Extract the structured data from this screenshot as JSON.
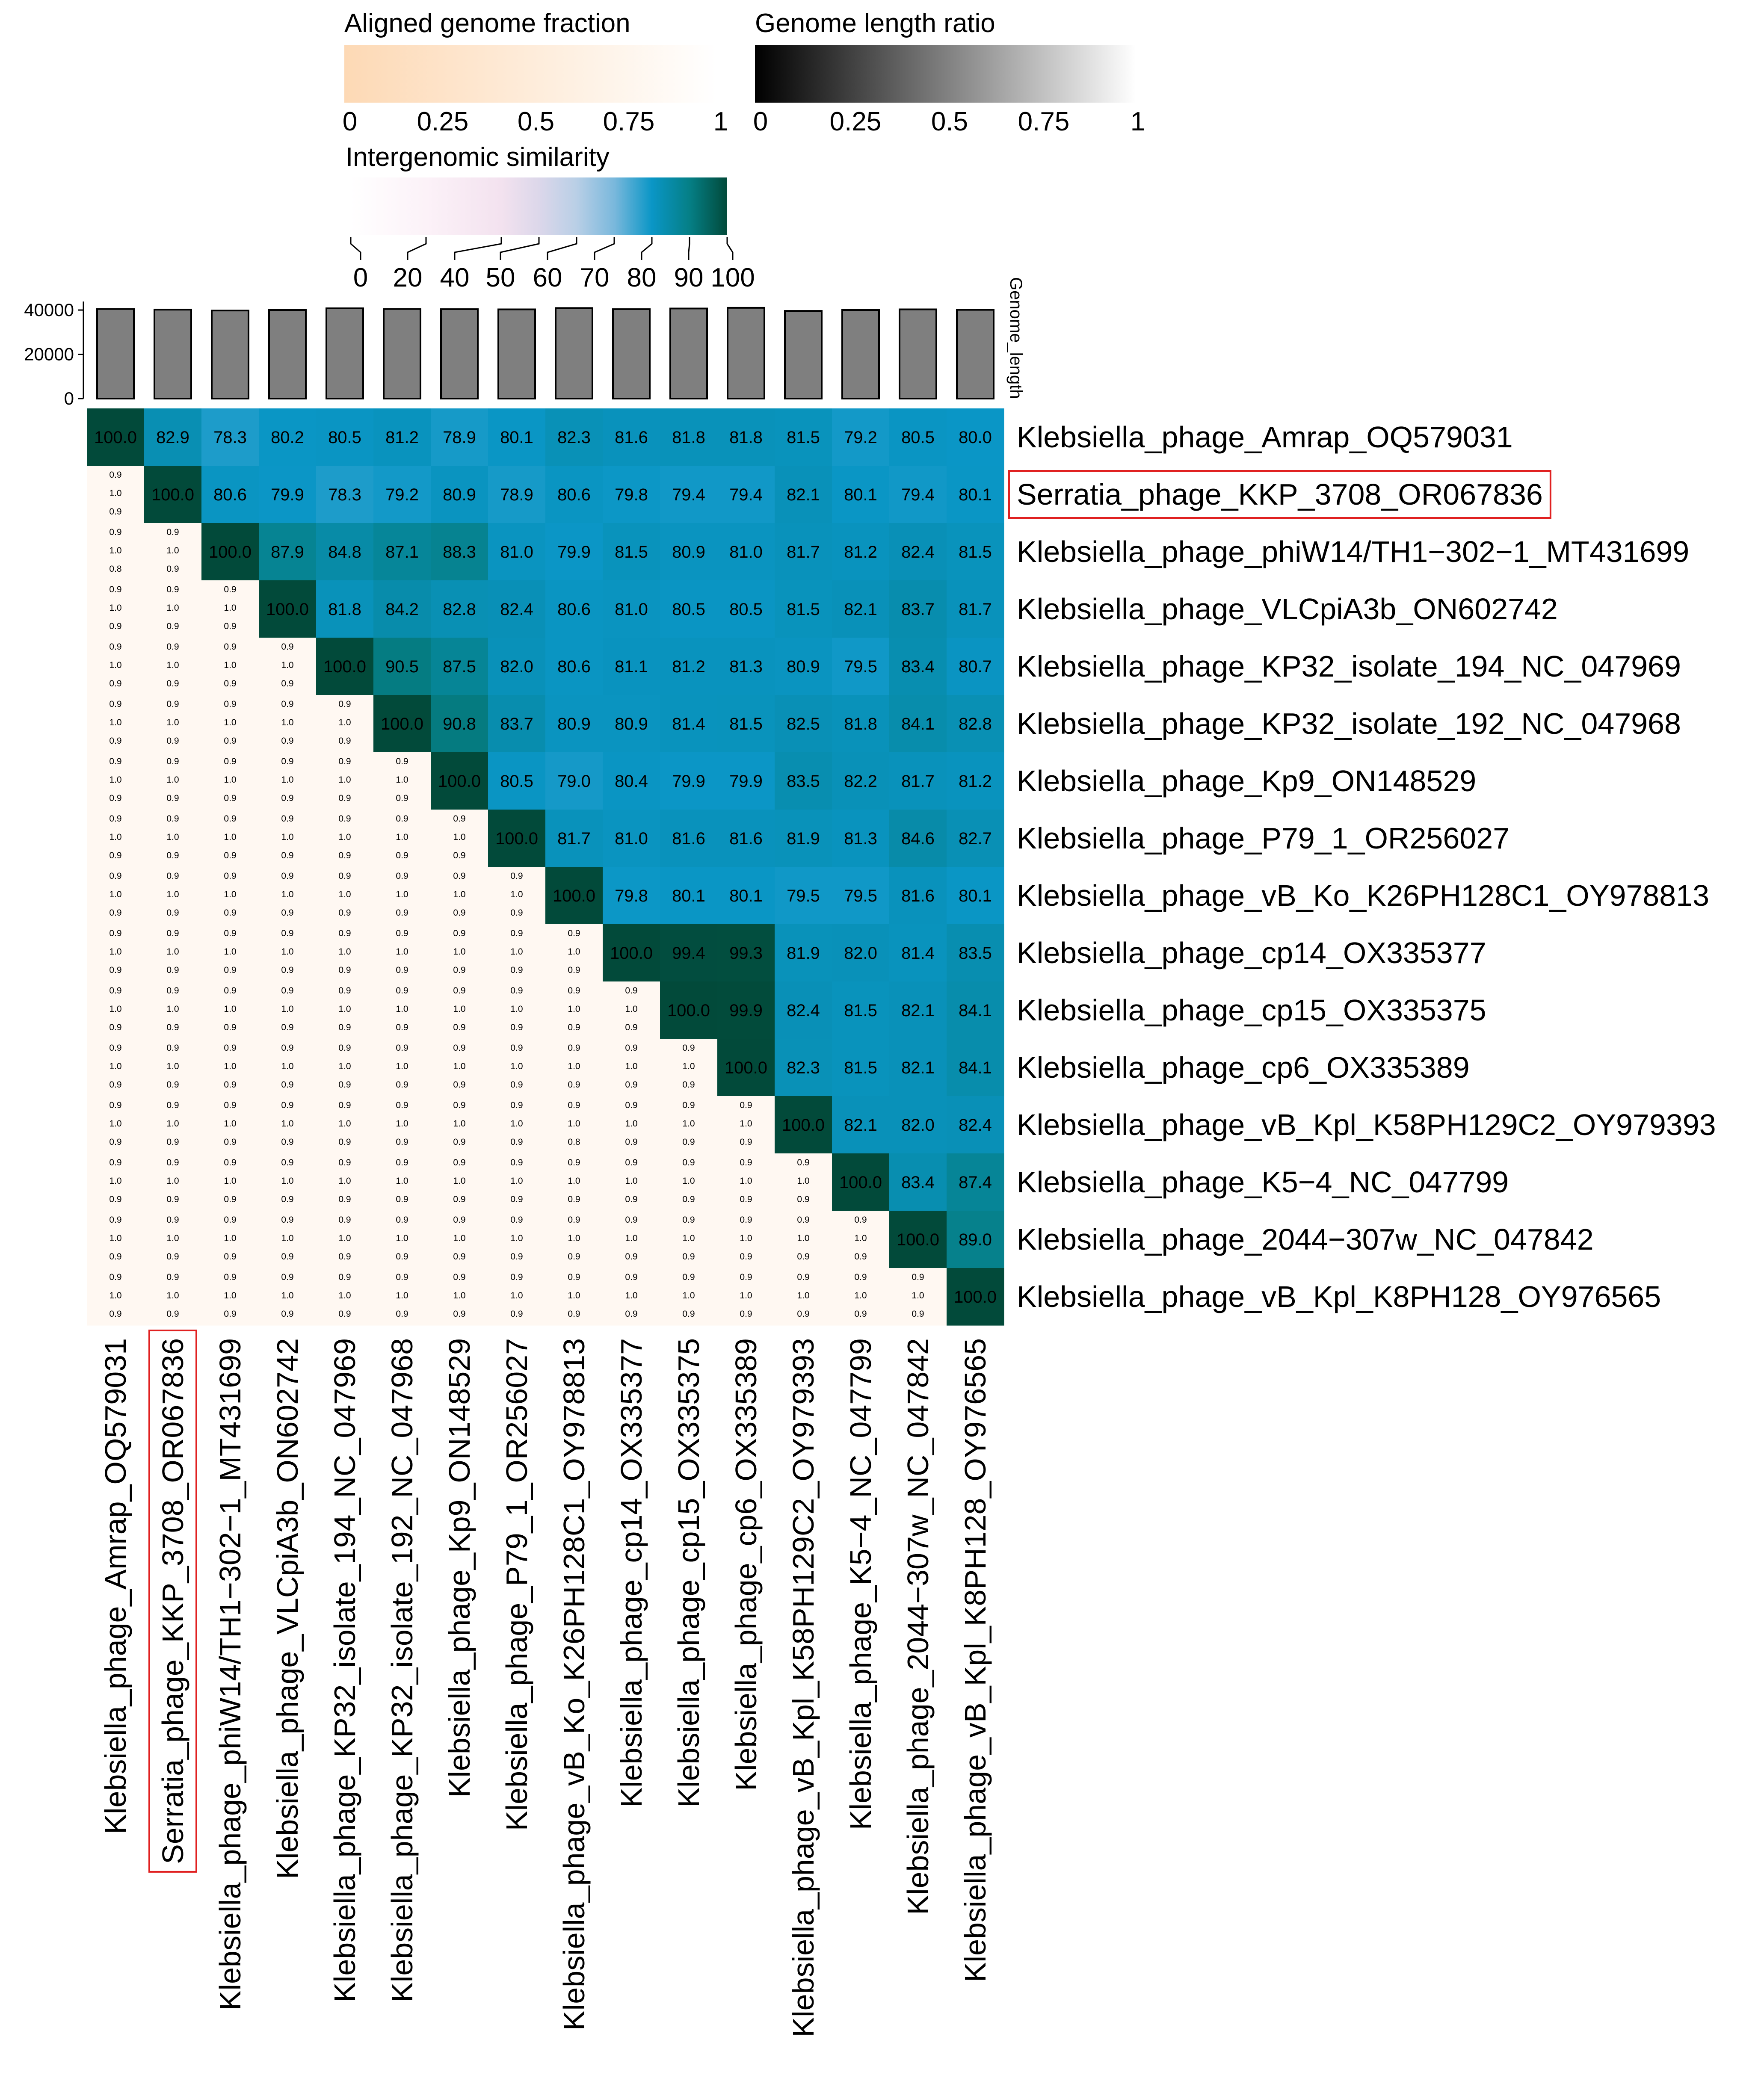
{
  "chart_data": {
    "type": "heatmap",
    "title": "",
    "genomes": [
      "Klebsiella_phage_Amrap_OQ579031",
      "Serratia_phage_KKP_3708_OR067836",
      "Klebsiella_phage_phiW14/TH1−302−1_MT431699",
      "Klebsiella_phage_VLCpiA3b_ON602742",
      "Klebsiella_phage_KP32_isolate_194_NC_047969",
      "Klebsiella_phage_KP32_isolate_192_NC_047968",
      "Klebsiella_phage_Kp9_ON148529",
      "Klebsiella_phage_P79_1_OR256027",
      "Klebsiella_phage_vB_Ko_K26PH128C1_OY978813",
      "Klebsiella_phage_cp14_OX335377",
      "Klebsiella_phage_cp15_OX335375",
      "Klebsiella_phage_cp6_OX335389",
      "Klebsiella_phage_vB_Kpl_K58PH129C2_OY979393",
      "Klebsiella_phage_K5−4_NC_047799",
      "Klebsiella_phage_2044−307w_NC_047842",
      "Klebsiella_phage_vB_Kpl_K8PH128_OY976565"
    ],
    "highlighted_genome": "Serratia_phage_KKP_3708_OR067836",
    "intergenomic_similarity": [
      [
        100.0,
        82.9,
        78.3,
        80.2,
        80.5,
        81.2,
        78.9,
        80.1,
        82.3,
        81.6,
        81.8,
        81.8,
        81.5,
        79.2,
        80.5,
        80.0
      ],
      [
        null,
        100.0,
        80.6,
        79.9,
        78.3,
        79.2,
        80.9,
        78.9,
        80.6,
        79.8,
        79.4,
        79.4,
        82.1,
        80.1,
        79.4,
        80.1
      ],
      [
        null,
        null,
        100.0,
        87.9,
        84.8,
        87.1,
        88.3,
        81.0,
        79.9,
        81.5,
        80.9,
        81.0,
        81.7,
        81.2,
        82.4,
        81.5
      ],
      [
        null,
        null,
        null,
        100.0,
        81.8,
        84.2,
        82.8,
        82.4,
        80.6,
        81.0,
        80.5,
        80.5,
        81.5,
        82.1,
        83.7,
        81.7
      ],
      [
        null,
        null,
        null,
        null,
        100.0,
        90.5,
        87.5,
        82.0,
        80.6,
        81.1,
        81.2,
        81.3,
        80.9,
        79.5,
        83.4,
        80.7
      ],
      [
        null,
        null,
        null,
        null,
        null,
        100.0,
        90.8,
        83.7,
        80.9,
        80.9,
        81.4,
        81.5,
        82.5,
        81.8,
        84.1,
        82.8
      ],
      [
        null,
        null,
        null,
        null,
        null,
        null,
        100.0,
        80.5,
        79.0,
        80.4,
        79.9,
        79.9,
        83.5,
        82.2,
        81.7,
        81.2
      ],
      [
        null,
        null,
        null,
        null,
        null,
        null,
        null,
        100.0,
        81.7,
        81.0,
        81.6,
        81.6,
        81.9,
        81.3,
        84.6,
        82.7
      ],
      [
        null,
        null,
        null,
        null,
        null,
        null,
        null,
        null,
        100.0,
        79.8,
        80.1,
        80.1,
        79.5,
        79.5,
        81.6,
        80.1
      ],
      [
        null,
        null,
        null,
        null,
        null,
        null,
        null,
        null,
        null,
        100.0,
        99.4,
        99.3,
        81.9,
        82.0,
        81.4,
        83.5
      ],
      [
        null,
        null,
        null,
        null,
        null,
        null,
        null,
        null,
        null,
        null,
        100.0,
        99.9,
        82.4,
        81.5,
        82.1,
        84.1
      ],
      [
        null,
        null,
        null,
        null,
        null,
        null,
        null,
        null,
        null,
        null,
        null,
        100.0,
        82.3,
        81.5,
        82.1,
        84.1
      ],
      [
        null,
        null,
        null,
        null,
        null,
        null,
        null,
        null,
        null,
        null,
        null,
        null,
        100.0,
        82.1,
        82.0,
        82.4
      ],
      [
        null,
        null,
        null,
        null,
        null,
        null,
        null,
        null,
        null,
        null,
        null,
        null,
        null,
        100.0,
        83.4,
        87.4
      ],
      [
        null,
        null,
        null,
        null,
        null,
        null,
        null,
        null,
        null,
        null,
        null,
        null,
        null,
        null,
        100.0,
        89.0
      ],
      [
        null,
        null,
        null,
        null,
        null,
        null,
        null,
        null,
        null,
        null,
        null,
        null,
        null,
        null,
        null,
        100.0
      ]
    ],
    "lower_cell_labels": [
      "0.9",
      "1.0",
      "0.9"
    ],
    "lower_cell_exceptions": [
      {
        "row": 2,
        "col": 0,
        "labels": [
          "0.9",
          "1.0",
          "0.8"
        ]
      },
      {
        "row": 12,
        "col": 8,
        "labels": [
          "0.9",
          "1.0",
          "0.8"
        ]
      }
    ],
    "genome_length_values": [
      40500,
      40200,
      39800,
      40000,
      40800,
      40500,
      40400,
      40300,
      40900,
      40400,
      40700,
      41000,
      39600,
      40000,
      40300,
      40100
    ],
    "genome_length_axis": {
      "label": "Genome_length",
      "ticks": [
        "0",
        "20000",
        "40000"
      ],
      "ylim": [
        0,
        40000
      ]
    },
    "legends": {
      "aligned_fraction": {
        "title": "Aligned genome fraction",
        "ticks": [
          "0",
          "0.25",
          "0.5",
          "0.75",
          "1"
        ],
        "color_from": "#fdd9b5",
        "color_to": "#ffffff"
      },
      "length_ratio": {
        "title": "Genome length ratio",
        "ticks": [
          "0",
          "0.25",
          "0.5",
          "0.75",
          "1"
        ],
        "color_from": "#000000",
        "color_to": "#ffffff"
      },
      "similarity": {
        "title": "Intergenomic similarity",
        "ticks": [
          "0",
          "20",
          "40",
          "50",
          "60",
          "70",
          "80",
          "90",
          "100"
        ],
        "stops": [
          {
            "value": 0,
            "color": "#ffffff"
          },
          {
            "value": 20,
            "color": "#fcf2f8"
          },
          {
            "value": 40,
            "color": "#f3e2ef"
          },
          {
            "value": 50,
            "color": "#dcd7ea"
          },
          {
            "value": 60,
            "color": "#b9cfe6"
          },
          {
            "value": 70,
            "color": "#7ab8dc"
          },
          {
            "value": 80,
            "color": "#0a96c6"
          },
          {
            "value": 90,
            "color": "#057f86"
          },
          {
            "value": 100,
            "color": "#024a3a"
          }
        ]
      }
    },
    "colors": {
      "bar_fill": "#7f7f7f",
      "bar_stroke": "#000000",
      "highlight_box": "#e02020",
      "lower_cell_fill": "#fff8f2"
    }
  }
}
